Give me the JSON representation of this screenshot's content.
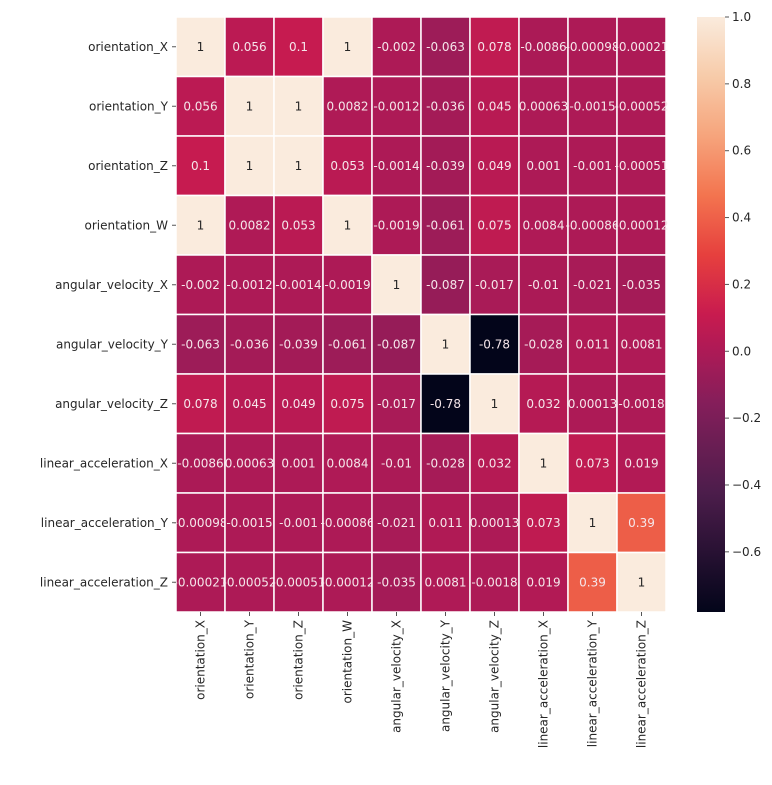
{
  "chart_data": {
    "type": "heatmap",
    "colormap": "rocket",
    "vmin": -0.78,
    "vmax": 1.0,
    "annotations_shown": true,
    "cell_border_color": "#ffffff",
    "row_labels": [
      "orientation_X",
      "orientation_Y",
      "orientation_Z",
      "orientation_W",
      "angular_velocity_X",
      "angular_velocity_Y",
      "angular_velocity_Z",
      "linear_acceleration_X",
      "linear_acceleration_Y",
      "linear_acceleration_Z"
    ],
    "col_labels": [
      "orientation_X",
      "orientation_Y",
      "orientation_Z",
      "orientation_W",
      "angular_velocity_X",
      "angular_velocity_Y",
      "angular_velocity_Z",
      "linear_acceleration_X",
      "linear_acceleration_Y",
      "linear_acceleration_Z"
    ],
    "values": [
      [
        1,
        0.056,
        0.1,
        1,
        -0.002,
        -0.063,
        0.078,
        -0.0086,
        -0.00098,
        -0.00021
      ],
      [
        0.056,
        1,
        1,
        0.0082,
        -0.0012,
        -0.036,
        0.045,
        0.00063,
        -0.0015,
        -0.00052
      ],
      [
        0.1,
        1,
        1,
        0.053,
        -0.0014,
        -0.039,
        0.049,
        0.001,
        -0.001,
        -0.00051
      ],
      [
        1,
        0.0082,
        0.053,
        1,
        -0.0019,
        -0.061,
        0.075,
        0.0084,
        -0.00086,
        -0.00012
      ],
      [
        -0.002,
        -0.0012,
        -0.0014,
        -0.0019,
        1,
        -0.087,
        -0.017,
        -0.01,
        -0.021,
        -0.035
      ],
      [
        -0.063,
        -0.036,
        -0.039,
        -0.061,
        -0.087,
        1,
        -0.78,
        -0.028,
        0.011,
        0.0081
      ],
      [
        0.078,
        0.045,
        0.049,
        0.075,
        -0.017,
        -0.78,
        1,
        0.032,
        0.00013,
        -0.0018
      ],
      [
        -0.0086,
        0.00063,
        0.001,
        0.0084,
        -0.01,
        -0.028,
        0.032,
        1,
        0.073,
        0.019
      ],
      [
        -0.00098,
        -0.0015,
        -0.001,
        -0.00086,
        -0.021,
        0.011,
        0.00013,
        0.073,
        1,
        0.39
      ],
      [
        -0.00021,
        -0.00052,
        -0.00051,
        -0.00012,
        -0.035,
        0.0081,
        -0.0018,
        0.019,
        0.39,
        1
      ]
    ],
    "colorbar": {
      "ticks": [
        1.0,
        0.8,
        0.6,
        0.4,
        0.2,
        0.0,
        -0.2,
        -0.4,
        -0.6
      ],
      "tick_labels": [
        "1.0",
        "0.8",
        "0.6",
        "0.4",
        "0.2",
        "0.0",
        "−0.2",
        "−0.4",
        "−0.6"
      ]
    }
  }
}
